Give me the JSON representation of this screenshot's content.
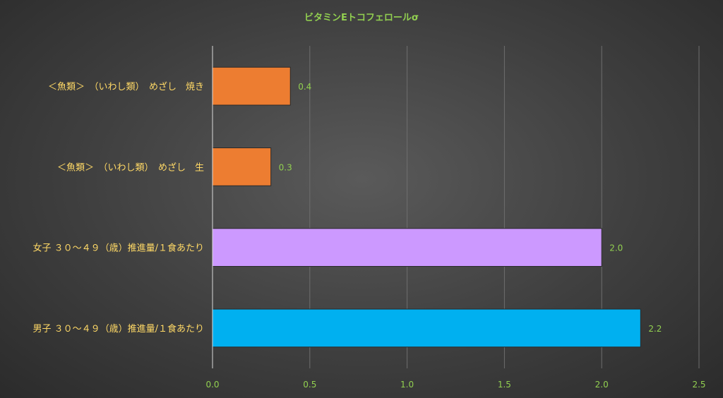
{
  "chart_data": {
    "type": "bar",
    "orientation": "horizontal",
    "title": "ビタミンEトコフェロールσ",
    "categories": [
      "＜魚類＞　（いわし類）　めざし　焼き",
      "＜魚類＞　（いわし類）　めざし　生",
      "女子 ３０～４９（歳）推進量/１食あたり",
      "男子 ３０～４９（歳）推進量/１食あたり"
    ],
    "values": [
      0.4,
      0.3,
      2.0,
      2.2
    ],
    "data_labels": [
      "0.4",
      "0.3",
      "2.0",
      "2.2"
    ],
    "bar_colors": [
      "#ed7d31",
      "#ed7d31",
      "#cc99ff",
      "#00b0f0"
    ],
    "xlim": [
      0,
      2.5
    ],
    "xticks": [
      0,
      0.5,
      1.0,
      1.5,
      2.0,
      2.5
    ],
    "xtick_labels": [
      "0.0",
      "0.5",
      "1.0",
      "1.5",
      "2.0",
      "2.5"
    ],
    "grid": true,
    "legend": "none"
  }
}
